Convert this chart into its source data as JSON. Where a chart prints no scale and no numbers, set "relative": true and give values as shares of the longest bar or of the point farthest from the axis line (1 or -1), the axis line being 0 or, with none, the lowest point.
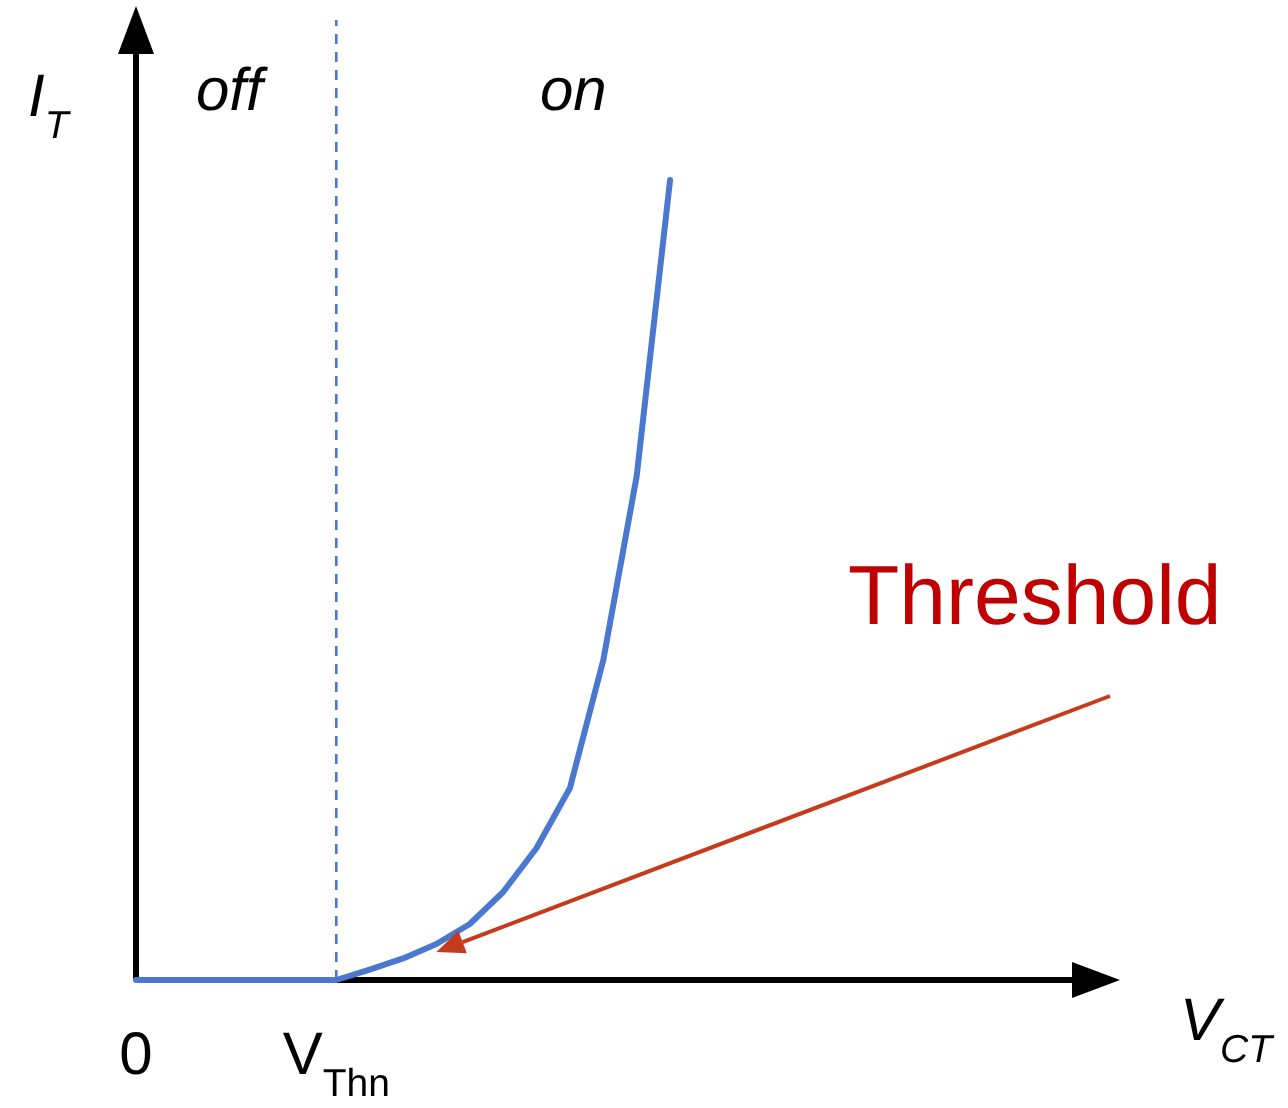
{
  "chart_data": {
    "type": "line",
    "relative": true,
    "xlabel": "V$_{CT}$",
    "ylabel": "I$_{T}$",
    "categories": [
      "0",
      null,
      null,
      null,
      null,
      null,
      "V$_{Thn}$",
      null,
      null,
      null,
      null,
      null,
      null,
      null,
      null,
      null,
      null,
      null,
      null,
      null,
      null,
      null,
      null,
      null,
      null,
      null,
      null,
      null,
      null,
      null
    ],
    "series": [
      {
        "color": "#4a78cf",
        "values": [
          0,
          0,
          0,
          0,
          0,
          0,
          0,
          0.013,
          0.027,
          0.045,
          0.07,
          0.11,
          0.165,
          0.24,
          0.4,
          0.63,
          1,
          null,
          null,
          null,
          null,
          null,
          null,
          null,
          null,
          null,
          null,
          null,
          null,
          null
        ]
      }
    ],
    "ref_lines": [
      {
        "axis": "x",
        "value": "V$_{Thn}$",
        "color": "#4a78cf",
        "line_style": "dashed"
      }
    ],
    "annotations": [
      "off",
      "on",
      "Threshold"
    ],
    "legend": false,
    "marker": "none",
    "line_style": "solid"
  }
}
